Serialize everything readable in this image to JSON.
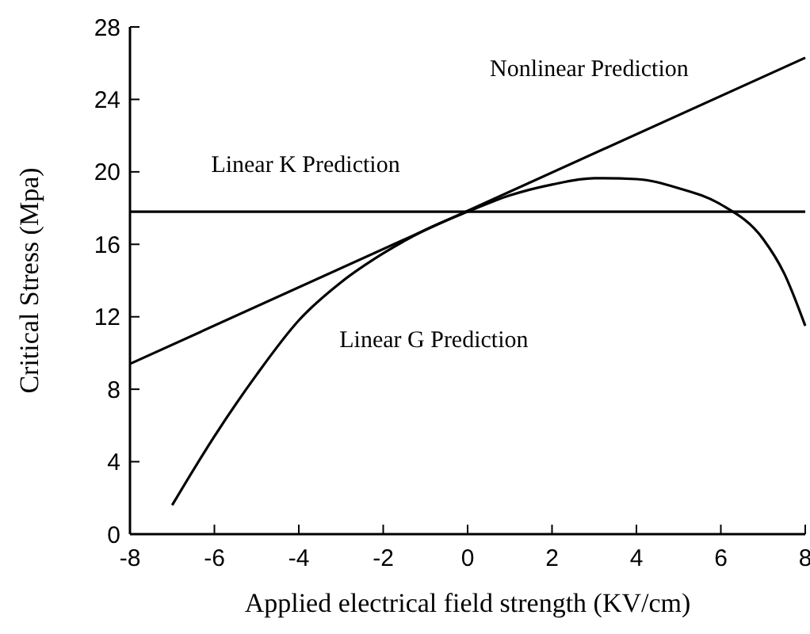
{
  "chart_data": {
    "type": "line",
    "xlabel": "Applied electrical field strength (KV/cm)",
    "ylabel": "Critical Stress (Mpa)",
    "xlim": [
      -8,
      8
    ],
    "xticks": [
      -8,
      -6,
      -4,
      -2,
      0,
      2,
      4,
      6,
      8
    ],
    "ylim": [
      0,
      28
    ],
    "yticks": [
      0,
      4,
      8,
      12,
      16,
      20,
      24,
      28
    ],
    "grid": false,
    "marker": "none",
    "line_style": "solid",
    "series": [
      {
        "name": "Nonlinear Prediction",
        "color": "#000000",
        "x": [
          -8,
          8
        ],
        "values": [
          9.4,
          26.3
        ]
      },
      {
        "name": "Linear K Prediction",
        "color": "#000000",
        "x": [
          -8,
          8
        ],
        "values": [
          17.8,
          17.8
        ]
      },
      {
        "name": "Linear G Prediction",
        "color": "#000000",
        "x": [
          -7,
          -6,
          -5,
          -4,
          -3,
          -2,
          -1,
          0,
          1,
          2,
          3,
          4,
          5,
          6,
          7,
          7.5,
          8
        ],
        "values": [
          1.6,
          5.4,
          8.8,
          11.8,
          13.9,
          15.5,
          16.8,
          17.8,
          18.7,
          19.3,
          19.65,
          19.6,
          19.1,
          18.2,
          16.3,
          14.4,
          11.5
        ]
      }
    ]
  }
}
